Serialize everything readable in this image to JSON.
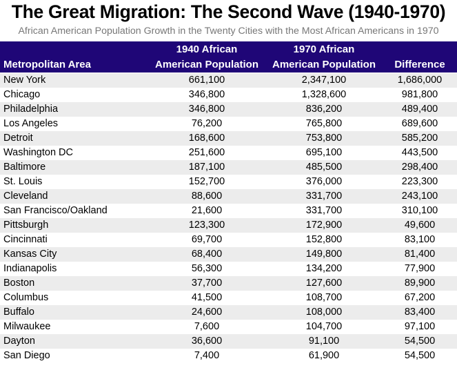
{
  "title": "The Great Migration: The Second Wave (1940-1970)",
  "subtitle": "African American Population Growth in the Twenty Cities with the Most African Americans in 1970",
  "colors": {
    "header_bg": "#1f0677",
    "header_text": "#ffffff",
    "alt_row": "#ececec"
  },
  "chart_data": {
    "type": "table",
    "title": "The Great Migration: The Second Wave (1940-1970)",
    "subtitle": "African American Population Growth in the Twenty Cities with the Most African Americans in 1970",
    "columns": [
      {
        "line1": "",
        "line2": "Metropolitan Area"
      },
      {
        "line1": "1940 African",
        "line2": "American Population"
      },
      {
        "line1": "1970 African",
        "line2": "American Population"
      },
      {
        "line1": "",
        "line2": "Difference"
      }
    ],
    "rows": [
      [
        "New York",
        "661,100",
        "2,347,100",
        "1,686,000"
      ],
      [
        "Chicago",
        "346,800",
        "1,328,600",
        "981,800"
      ],
      [
        "Philadelphia",
        "346,800",
        "836,200",
        "489,400"
      ],
      [
        "Los Angeles",
        "76,200",
        "765,800",
        "689,600"
      ],
      [
        "Detroit",
        "168,600",
        "753,800",
        "585,200"
      ],
      [
        "Washington DC",
        "251,600",
        "695,100",
        "443,500"
      ],
      [
        "Baltimore",
        "187,100",
        "485,500",
        "298,400"
      ],
      [
        "St. Louis",
        "152,700",
        "376,000",
        "223,300"
      ],
      [
        "Cleveland",
        "88,600",
        "331,700",
        "243,100"
      ],
      [
        "San Francisco/Oakland",
        "21,600",
        "331,700",
        "310,100"
      ],
      [
        "Pittsburgh",
        "123,300",
        "172,900",
        "49,600"
      ],
      [
        "Cincinnati",
        "69,700",
        "152,800",
        "83,100"
      ],
      [
        "Kansas City",
        "68,400",
        "149,800",
        "81,400"
      ],
      [
        "Indianapolis",
        "56,300",
        "134,200",
        "77,900"
      ],
      [
        "Boston",
        "37,700",
        "127,600",
        "89,900"
      ],
      [
        "Columbus",
        "41,500",
        "108,700",
        "67,200"
      ],
      [
        "Buffalo",
        "24,600",
        "108,000",
        "83,400"
      ],
      [
        "Milwaukee",
        "7,600",
        "104,700",
        "97,100"
      ],
      [
        "Dayton",
        "36,600",
        "91,100",
        "54,500"
      ],
      [
        "San Diego",
        "7,400",
        "61,900",
        "54,500"
      ]
    ]
  }
}
